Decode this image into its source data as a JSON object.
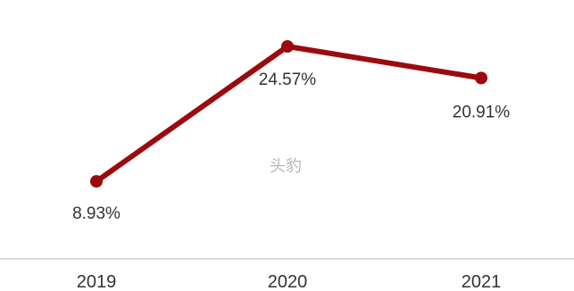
{
  "chart_data": {
    "type": "line",
    "title": "…",
    "categories": [
      "2019",
      "2020",
      "2021"
    ],
    "series": [
      {
        "values": [
          8.93,
          24.57,
          20.91
        ],
        "value_labels": [
          "8.93%",
          "24.57%",
          "20.91%"
        ],
        "color": "#9b0a0e"
      }
    ],
    "ylim": [
      0,
      30
    ],
    "grid": false,
    "legend": "none"
  },
  "watermark": "头豹",
  "colors": {
    "line": "#9b0a0e",
    "axis": "#d0d0d0",
    "text": "#333333"
  }
}
